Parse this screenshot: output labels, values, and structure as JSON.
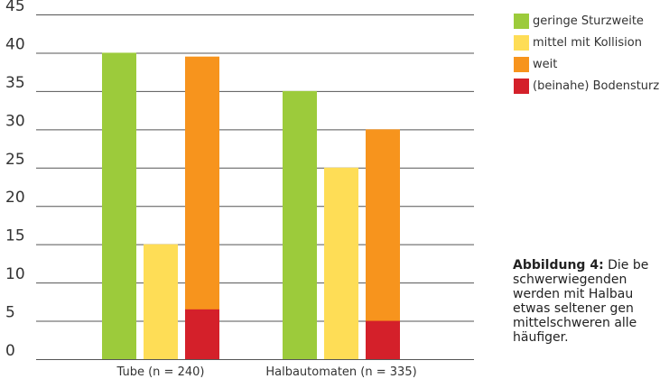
{
  "chart_data": {
    "type": "bar",
    "categories": [
      "Tube (n = 240)",
      "Halbautomaten (n = 335)"
    ],
    "series": [
      {
        "name": "geringe Sturzweite",
        "color": "#9ccb3b",
        "values": [
          40,
          35
        ]
      },
      {
        "name": "mittel mit Kollision",
        "color": "#fedd56",
        "values": [
          15,
          25
        ]
      },
      {
        "name": "weit",
        "color": "#f7941d",
        "values": [
          39.5,
          30
        ]
      },
      {
        "name": "(beinahe) Bodensturz",
        "color": "#d4202a",
        "values": [
          6.5,
          5
        ]
      }
    ],
    "overlay": {
      "series": "(beinahe) Bodensturz",
      "on": "weit"
    },
    "ylim": [
      0,
      45
    ],
    "yticks": [
      0,
      5,
      10,
      15,
      20,
      25,
      30,
      35,
      40,
      45
    ],
    "grid": true,
    "legend_position": "top-right"
  },
  "caption": {
    "lead": "Abbildung 4:",
    "lines": [
      " Die be",
      "schwerwiegenden",
      "werden mit Halbau",
      "etwas seltener gen",
      "mittelschweren alle",
      "häufiger."
    ]
  }
}
